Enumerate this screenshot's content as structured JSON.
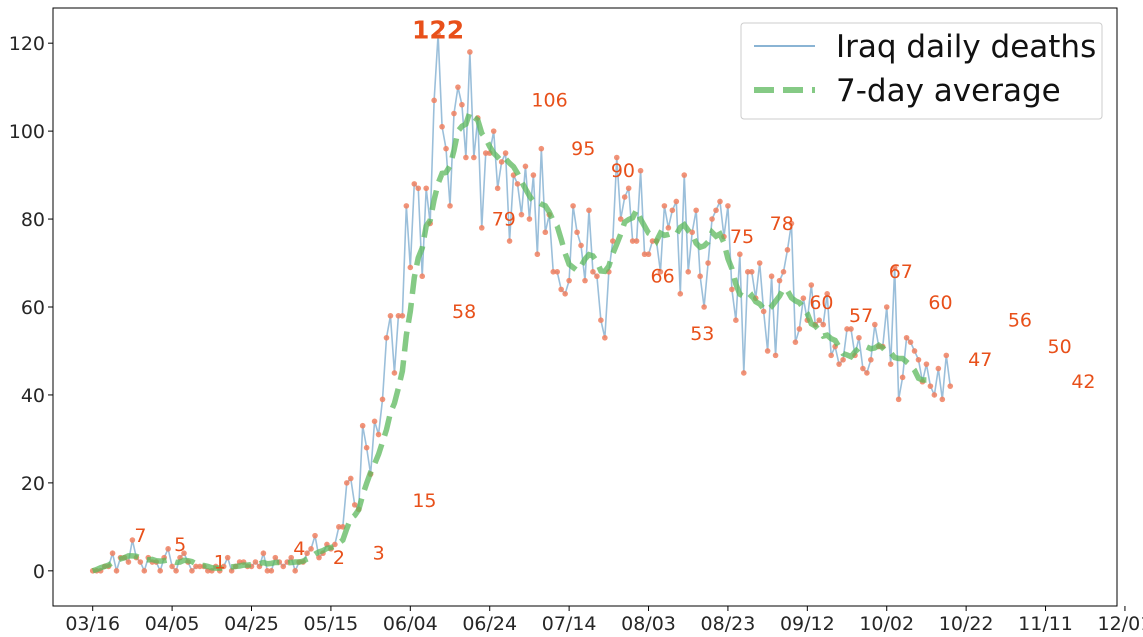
{
  "chart_data": {
    "type": "line",
    "title": "",
    "xlabel": "",
    "ylabel": "",
    "x_tick_labels": [
      "03/16",
      "04/05",
      "04/25",
      "05/15",
      "06/04",
      "06/24",
      "07/14",
      "08/03",
      "08/23",
      "09/12",
      "10/02",
      "10/22",
      "11/11",
      "12/01"
    ],
    "y_ticks": [
      0,
      20,
      40,
      60,
      80,
      100,
      120
    ],
    "xlim": [
      -10,
      258
    ],
    "ylim": [
      -8,
      128
    ],
    "legend": {
      "placement": "top-right",
      "entries": [
        "Iraq daily deaths",
        "7-day average"
      ]
    },
    "series": [
      {
        "name": "Iraq daily deaths",
        "color": "#8ab4d4",
        "marker_color": "#f08060",
        "values": [
          0,
          0,
          0,
          1,
          1,
          4,
          0,
          3,
          3,
          2,
          7,
          3,
          2,
          0,
          3,
          2,
          2,
          0,
          3,
          5,
          1,
          0,
          3,
          4,
          2,
          0,
          1,
          1,
          1,
          0,
          0,
          1,
          0,
          1,
          3,
          0,
          1,
          2,
          2,
          1,
          1,
          2,
          1,
          4,
          0,
          0,
          3,
          2,
          1,
          2,
          3,
          0,
          2,
          2,
          4,
          5,
          8,
          3,
          4,
          6,
          5,
          6,
          10,
          10,
          20,
          21,
          15,
          14,
          33,
          28,
          22,
          34,
          31,
          39,
          53,
          58,
          45,
          58,
          58,
          83,
          69,
          88,
          87,
          67,
          87,
          79,
          107,
          122,
          101,
          96,
          83,
          104,
          110,
          106,
          94,
          118,
          94,
          103,
          78,
          95,
          95,
          100,
          87,
          93,
          95,
          75,
          90,
          88,
          81,
          92,
          80,
          90,
          72,
          96,
          77,
          81,
          68,
          68,
          64,
          63,
          66,
          83,
          77,
          74,
          66,
          82,
          68,
          67,
          57,
          53,
          68,
          75,
          94,
          80,
          85,
          87,
          75,
          75,
          91,
          72,
          72,
          75,
          75,
          68,
          83,
          78,
          82,
          84,
          63,
          90,
          68,
          77,
          82,
          67,
          60,
          70,
          80,
          82,
          84,
          76,
          83,
          64,
          57,
          72,
          45,
          68,
          68,
          62,
          70,
          59,
          50,
          67,
          49,
          66,
          68,
          73,
          79,
          52,
          55,
          62,
          57,
          65,
          56,
          57,
          56,
          63,
          49,
          51,
          47,
          48,
          55,
          55,
          49,
          53,
          46,
          45,
          48,
          56,
          51,
          51,
          60,
          47,
          69,
          39,
          44,
          53,
          52,
          50,
          48,
          43,
          47,
          42,
          40,
          46,
          39,
          49,
          42
        ]
      },
      {
        "name": "7-day average",
        "color": "#5cb85c",
        "values": [
          0,
          0.3,
          0.7,
          1,
          1.3,
          1.9,
          2.4,
          2.7,
          3,
          3.4,
          3.4,
          3.3,
          2.9,
          2.6,
          2.5,
          2.6,
          2.3,
          2.2,
          2.3,
          2.5,
          2.2,
          1.9,
          2,
          2.4,
          2.3,
          2.1,
          1.6,
          1.2,
          1.2,
          1,
          0.7,
          0.6,
          0.6,
          0.6,
          0.9,
          0.9,
          1,
          1.1,
          1.3,
          1.3,
          1.4,
          1.6,
          1.6,
          1.9,
          1.6,
          1.7,
          1.9,
          1.9,
          1.7,
          1.8,
          1.9,
          2,
          2,
          2.2,
          2.7,
          3.1,
          3.8,
          4.3,
          4.6,
          5.1,
          5.3,
          5.6,
          6.3,
          7,
          9.6,
          11.9,
          12.6,
          13.9,
          17.2,
          19.9,
          22.4,
          24.3,
          26.5,
          29.3,
          32.1,
          36,
          38.1,
          41.6,
          45.4,
          53.6,
          59,
          66.7,
          71.2,
          73.4,
          78.4,
          79.7,
          84.4,
          88.1,
          90.4,
          90.6,
          92.1,
          95.6,
          100,
          101.1,
          101.6,
          104.3,
          103.2,
          102.5,
          99.5,
          98.3,
          96.5,
          95,
          94.1,
          93.1,
          93.7,
          92.7,
          91.9,
          90.4,
          88.5,
          86.9,
          85.3,
          84,
          84,
          83.4,
          83,
          81.6,
          79.6,
          78.4,
          75.4,
          72.2,
          69.7,
          69,
          68.3,
          69.3,
          70.9,
          71.9,
          71.6,
          70.3,
          68.2,
          68.1,
          69.3,
          72.1,
          74.3,
          76.6,
          79.3,
          79.9,
          80.3,
          82.1,
          80,
          78.4,
          76.8,
          76.3,
          75,
          76.8,
          76.3,
          76.5,
          76.8,
          76.5,
          78.1,
          78.7,
          77.4,
          76.6,
          74.5,
          73.6,
          73.9,
          74.8,
          77,
          76.1,
          76.6,
          74.6,
          71,
          68.7,
          65.2,
          62.9,
          62.4,
          61.7,
          62.6,
          61.2,
          60.7,
          59.6,
          59.3,
          60.1,
          61.3,
          62.5,
          64.2,
          63.7,
          62.1,
          61.4,
          61,
          59.8,
          58.5,
          56.2,
          55.7,
          54.7,
          53.4,
          53.6,
          52.8,
          52.4,
          50.9,
          49.4,
          49.1,
          48.7,
          49.8,
          50.7,
          50.7,
          50.9,
          50.5,
          50.7,
          51.3,
          50.7,
          49.7,
          49.6,
          48.5,
          48.3,
          48.3,
          47.5,
          46.7,
          45.6,
          43.8,
          43.4,
          43.4
        ]
      }
    ],
    "annotations": [
      {
        "index": 10,
        "value": 7,
        "label": "7"
      },
      {
        "index": 20,
        "value": 5,
        "label": "5"
      },
      {
        "index": 30,
        "value": 1,
        "label": "1"
      },
      {
        "index": 50,
        "value": 4,
        "label": "4"
      },
      {
        "index": 60,
        "value": 2,
        "label": "2"
      },
      {
        "index": 70,
        "value": 3,
        "label": "3"
      },
      {
        "index": 80,
        "value": 15,
        "label": "15"
      },
      {
        "index": 90,
        "value": 58,
        "label": "58"
      },
      {
        "index": 100,
        "value": 79,
        "label": "79"
      },
      {
        "index": 110,
        "value": 106,
        "label": "106"
      },
      {
        "index": 120,
        "value": 95,
        "label": "95"
      },
      {
        "index": 130,
        "value": 90,
        "label": "90"
      },
      {
        "index": 140,
        "value": 66,
        "label": "66"
      },
      {
        "index": 150,
        "value": 53,
        "label": "53"
      },
      {
        "index": 160,
        "value": 75,
        "label": "75"
      },
      {
        "index": 170,
        "value": 78,
        "label": "78"
      },
      {
        "index": 180,
        "value": 60,
        "label": "60"
      },
      {
        "index": 190,
        "value": 57,
        "label": "57"
      },
      {
        "index": 200,
        "value": 67,
        "label": "67"
      },
      {
        "index": 210,
        "value": 60,
        "label": "60"
      },
      {
        "index": 220,
        "value": 47,
        "label": "47"
      },
      {
        "index": 230,
        "value": 56,
        "label": "56"
      },
      {
        "index": 240,
        "value": 50,
        "label": "50"
      },
      {
        "index": 246,
        "value": 42,
        "label": "42"
      }
    ],
    "max_annotation": {
      "index": 87,
      "value": 122,
      "label": "122"
    }
  }
}
